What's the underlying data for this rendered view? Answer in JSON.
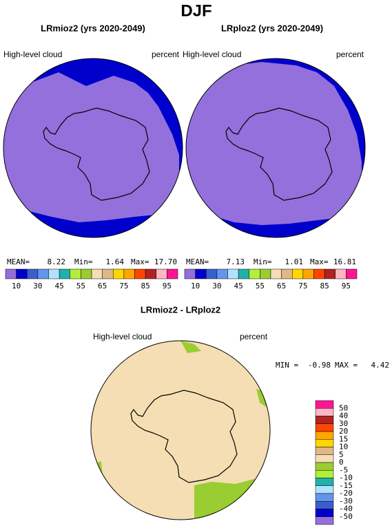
{
  "title": "DJF",
  "panels": [
    {
      "title": "LRmioz2 (yrs 2020-2049)",
      "left_label": "High-level cloud",
      "right_label": "percent",
      "stats": [
        "MEAN=",
        "8.22",
        "Min=",
        "1.64",
        "Max=",
        "17.70"
      ]
    },
    {
      "title": "LRploz2 (yrs 2020-2049)",
      "left_label": "High-level cloud",
      "right_label": "percent",
      "stats": [
        "MEAN=",
        "7.13",
        "Min=",
        "1.01",
        "Max=",
        "16.81"
      ]
    }
  ],
  "colorbar": {
    "labels": [
      "10",
      "30",
      "45",
      "55",
      "65",
      "75",
      "85",
      "95"
    ],
    "colors": [
      "#9370db",
      "#0000cd",
      "#3a5fcd",
      "#6495ed",
      "#b0e2ff",
      "#20b2aa",
      "#b3ee3a",
      "#9acd32",
      "#f5deb3",
      "#deb887",
      "#ffd700",
      "#ffa500",
      "#ff4500",
      "#b22222",
      "#ffb6c1",
      "#ff1493"
    ]
  },
  "difference": {
    "title": "LRmioz2 - LRploz2",
    "left_label": "High-level cloud",
    "right_label": "percent",
    "stats": [
      "MIN =",
      "-0.98",
      "MAX =",
      "4.42"
    ],
    "colorbar": {
      "labels": [
        "50",
        "40",
        "30",
        "20",
        "15",
        "10",
        "5",
        "0",
        "-5",
        "-10",
        "-15",
        "-20",
        "-30",
        "-40",
        "-50"
      ],
      "colors": [
        "#ff1493",
        "#ffb6c1",
        "#b22222",
        "#ff4500",
        "#ffa500",
        "#ffd700",
        "#deb887",
        "#f5deb3",
        "#9acd32",
        "#b3ee3a",
        "#20b2aa",
        "#b0e2ff",
        "#6495ed",
        "#3a5fcd",
        "#0000cd",
        "#9370db"
      ]
    }
  }
}
